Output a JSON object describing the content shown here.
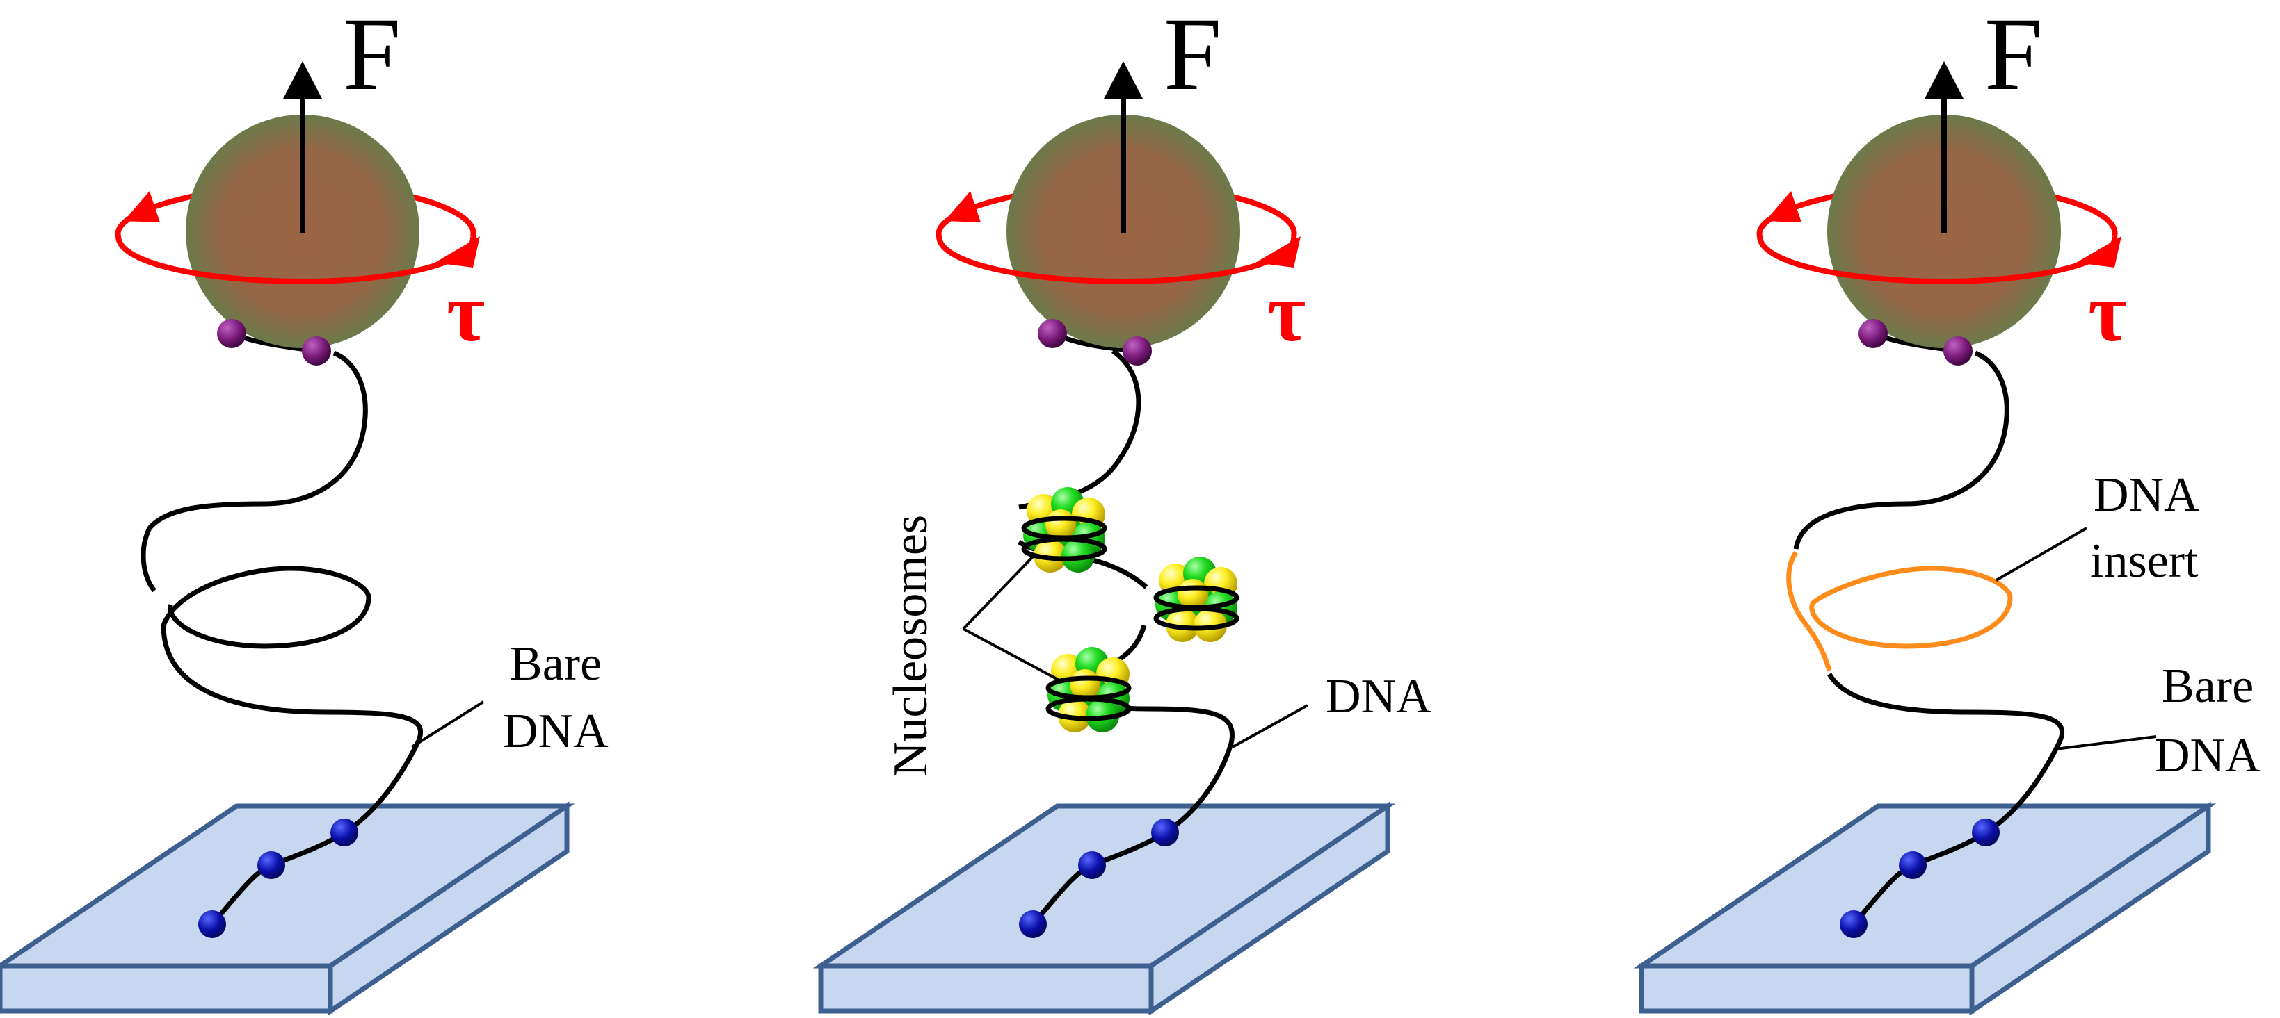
{
  "colors": {
    "bead": "#9b6545",
    "bead_edge": "#6b7a4a",
    "torque": "#ff0000",
    "dna": "#000000",
    "insert": "#ff8c1a",
    "surface_top": "#c6d7ef",
    "surface_edge": "#3d6090",
    "anchor_surface": "#0a10a8",
    "anchor_bead": "#7a1a7a",
    "nucleosome_a": "#22dd22",
    "nucleosome_b": "#ffee22"
  },
  "panels": [
    {
      "force_label": "F",
      "torque_label": "τ",
      "label_lines": [
        "Bare",
        "DNA"
      ]
    },
    {
      "force_label": "F",
      "torque_label": "τ",
      "nucleosome_label": "Nucleosomes",
      "dna_label": "DNA"
    },
    {
      "force_label": "F",
      "torque_label": "τ",
      "insert_label_lines": [
        "DNA",
        "insert"
      ],
      "label_lines": [
        "Bare",
        "DNA"
      ]
    }
  ]
}
